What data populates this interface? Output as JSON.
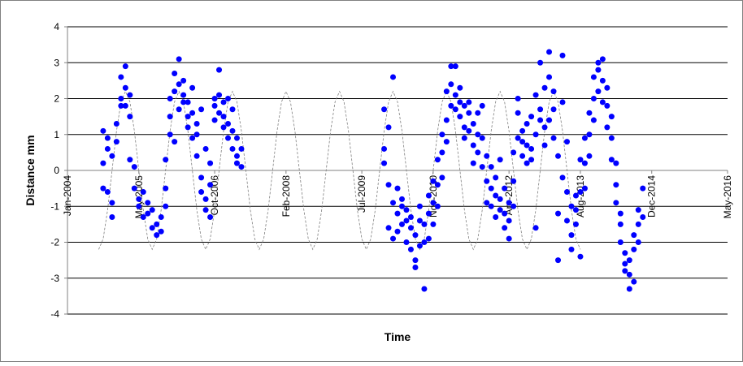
{
  "chart_data": {
    "type": "scatter",
    "x_label": "Time",
    "y_label": "Distance mm",
    "xlim": [
      "2004-01",
      "2016-05"
    ],
    "xticks": [
      {
        "value": "2004-01",
        "label": "Jan-2004"
      },
      {
        "value": "2005-05",
        "label": "May-2005"
      },
      {
        "value": "2006-10",
        "label": "Oct-2006"
      },
      {
        "value": "2008-02",
        "label": "Feb-2008"
      },
      {
        "value": "2009-07",
        "label": "Jul-2009"
      },
      {
        "value": "2010-11",
        "label": "Nov-2010"
      },
      {
        "value": "2012-04",
        "label": "Apr-2012"
      },
      {
        "value": "2013-08",
        "label": "Aug-2013"
      },
      {
        "value": "2014-12",
        "label": "Dec-2014"
      },
      {
        "value": "2016-05",
        "label": "May-2016"
      }
    ],
    "ylim": [
      -4,
      4
    ],
    "yticks": [
      -4,
      -3,
      -2,
      -1,
      0,
      1,
      2,
      3,
      4
    ],
    "grid": true,
    "series": [
      {
        "style": "markers",
        "color": "#0000ff",
        "x": [
          "2004-09",
          "2004-09",
          "2004-09",
          "2004-10",
          "2004-10",
          "2004-10",
          "2004-11",
          "2004-11",
          "2004-11",
          "2004-12",
          "2004-12",
          "2005-01",
          "2005-01",
          "2005-01",
          "2005-02",
          "2005-02",
          "2005-02",
          "2005-03",
          "2005-03",
          "2005-03",
          "2005-04",
          "2005-04",
          "2005-05",
          "2005-05",
          "2005-06",
          "2005-06",
          "2005-07",
          "2005-07",
          "2005-08",
          "2005-08",
          "2005-09",
          "2005-09",
          "2005-10",
          "2005-10",
          "2005-11",
          "2005-11",
          "2005-11",
          "2005-12",
          "2005-12",
          "2005-12",
          "2006-01",
          "2006-01",
          "2006-01",
          "2006-02",
          "2006-02",
          "2006-02",
          "2006-03",
          "2006-03",
          "2006-03",
          "2006-04",
          "2006-04",
          "2006-04",
          "2006-05",
          "2006-05",
          "2006-05",
          "2006-06",
          "2006-06",
          "2006-06",
          "2006-07",
          "2006-07",
          "2006-07",
          "2006-08",
          "2006-08",
          "2006-08",
          "2006-09",
          "2006-09",
          "2006-09",
          "2006-10",
          "2006-10",
          "2006-10",
          "2006-11",
          "2006-11",
          "2006-11",
          "2006-12",
          "2006-12",
          "2006-12",
          "2007-01",
          "2007-01",
          "2007-01",
          "2007-02",
          "2007-02",
          "2007-02",
          "2007-03",
          "2007-03",
          "2007-03",
          "2007-04",
          "2007-04",
          "2009-12",
          "2009-12",
          "2009-12",
          "2010-01",
          "2010-01",
          "2010-01",
          "2010-02",
          "2010-02",
          "2010-02",
          "2010-03",
          "2010-03",
          "2010-03",
          "2010-04",
          "2010-04",
          "2010-04",
          "2010-05",
          "2010-05",
          "2010-05",
          "2010-06",
          "2010-06",
          "2010-06",
          "2010-07",
          "2010-07",
          "2010-07",
          "2010-08",
          "2010-08",
          "2010-08",
          "2010-09",
          "2010-09",
          "2010-09",
          "2010-10",
          "2010-10",
          "2010-10",
          "2010-11",
          "2010-11",
          "2010-11",
          "2010-12",
          "2010-12",
          "2010-12",
          "2011-01",
          "2011-01",
          "2011-01",
          "2011-02",
          "2011-02",
          "2011-02",
          "2011-03",
          "2011-03",
          "2011-03",
          "2011-04",
          "2011-04",
          "2011-04",
          "2011-05",
          "2011-05",
          "2011-05",
          "2011-06",
          "2011-06",
          "2011-06",
          "2011-07",
          "2011-07",
          "2011-07",
          "2011-08",
          "2011-08",
          "2011-08",
          "2011-09",
          "2011-09",
          "2011-09",
          "2011-10",
          "2011-10",
          "2011-10",
          "2011-11",
          "2011-11",
          "2011-11",
          "2011-12",
          "2011-12",
          "2011-12",
          "2012-01",
          "2012-01",
          "2012-01",
          "2012-02",
          "2012-02",
          "2012-02",
          "2012-03",
          "2012-03",
          "2012-03",
          "2012-04",
          "2012-04",
          "2012-04",
          "2012-05",
          "2012-05",
          "2012-05",
          "2012-06",
          "2012-06",
          "2012-06",
          "2012-07",
          "2012-07",
          "2012-07",
          "2012-08",
          "2012-08",
          "2012-08",
          "2012-09",
          "2012-09",
          "2012-09",
          "2012-10",
          "2012-10",
          "2012-10",
          "2012-11",
          "2012-11",
          "2012-11",
          "2012-12",
          "2012-12",
          "2012-12",
          "2013-01",
          "2013-01",
          "2013-01",
          "2013-02",
          "2013-02",
          "2013-02",
          "2013-03",
          "2013-03",
          "2013-03",
          "2013-04",
          "2013-04",
          "2013-04",
          "2013-05",
          "2013-05",
          "2013-05",
          "2013-06",
          "2013-06",
          "2013-06",
          "2013-07",
          "2013-07",
          "2013-07",
          "2013-08",
          "2013-08",
          "2013-08",
          "2013-09",
          "2013-09",
          "2013-09",
          "2013-10",
          "2013-10",
          "2013-10",
          "2013-11",
          "2013-11",
          "2013-11",
          "2013-12",
          "2013-12",
          "2013-12",
          "2014-01",
          "2014-01",
          "2014-01",
          "2014-02",
          "2014-02",
          "2014-02",
          "2014-03",
          "2014-03",
          "2014-03",
          "2014-04",
          "2014-04",
          "2014-04",
          "2014-05",
          "2014-05",
          "2014-05",
          "2014-06",
          "2014-06",
          "2014-06",
          "2014-07",
          "2014-07",
          "2014-07",
          "2014-08",
          "2014-08",
          "2014-08",
          "2014-09",
          "2014-09",
          "2014-09",
          "2014-10",
          "2014-10"
        ],
        "values": [
          1.1,
          0.2,
          -0.5,
          0.6,
          -0.6,
          0.9,
          -1.3,
          -0.9,
          0.4,
          1.3,
          0.8,
          2.0,
          1.8,
          2.6,
          2.3,
          1.8,
          2.9,
          2.1,
          1.5,
          0.3,
          0.1,
          -0.5,
          -0.8,
          -1.0,
          -0.6,
          -1.3,
          -1.2,
          -0.9,
          -1.6,
          -1.1,
          -1.5,
          -1.8,
          -1.7,
          -1.3,
          -0.5,
          0.3,
          -1.0,
          1.0,
          1.5,
          2.0,
          0.8,
          2.2,
          2.7,
          1.7,
          3.1,
          2.4,
          1.9,
          2.1,
          2.5,
          1.5,
          1.9,
          1.2,
          2.3,
          1.6,
          0.9,
          1.3,
          1.0,
          0.4,
          1.7,
          -0.2,
          -0.6,
          0.6,
          -1.1,
          -0.8,
          -1.3,
          -0.4,
          0.2,
          1.8,
          2.0,
          1.4,
          2.8,
          2.1,
          1.6,
          1.2,
          1.9,
          1.5,
          2.0,
          1.3,
          0.9,
          1.7,
          0.6,
          1.1,
          0.2,
          0.9,
          0.4,
          0.1,
          0.6,
          1.7,
          0.6,
          0.2,
          -0.4,
          1.2,
          -1.6,
          -0.9,
          2.6,
          -1.9,
          -1.2,
          -0.5,
          -1.7,
          -1.5,
          -0.8,
          -1.0,
          -2.0,
          -1.4,
          -1.1,
          -1.6,
          -2.2,
          -1.3,
          -2.5,
          -1.8,
          -2.7,
          -1.4,
          -2.1,
          -1.0,
          -3.3,
          -2.0,
          -1.5,
          -1.2,
          -0.7,
          -1.9,
          -0.9,
          -0.3,
          -1.5,
          -0.4,
          0.3,
          -1.0,
          0.5,
          1.0,
          -0.2,
          1.4,
          2.2,
          0.8,
          1.8,
          2.4,
          2.9,
          2.1,
          2.9,
          1.7,
          1.9,
          1.5,
          2.3,
          1.2,
          1.8,
          0.9,
          1.6,
          1.9,
          1.1,
          0.7,
          1.3,
          0.2,
          1.6,
          1.0,
          0.5,
          1.8,
          0.9,
          0.1,
          -0.3,
          0.4,
          -0.9,
          -1.0,
          -0.5,
          0.1,
          -1.3,
          -0.7,
          -0.2,
          -0.8,
          -1.1,
          0.3,
          -1.6,
          -1.2,
          -0.5,
          -1.9,
          -0.9,
          -1.4,
          -0.3,
          -1.0,
          0.5,
          0.9,
          1.6,
          2.0,
          1.1,
          0.4,
          0.8,
          0.7,
          0.2,
          1.3,
          1.5,
          0.6,
          0.3,
          1.0,
          -1.6,
          2.1,
          1.7,
          3.0,
          1.4,
          0.7,
          2.3,
          1.2,
          3.3,
          2.6,
          1.4,
          1.7,
          2.2,
          0.9,
          0.4,
          -2.5,
          -1.2,
          1.9,
          3.2,
          -0.2,
          0.8,
          -0.6,
          -1.4,
          -1.8,
          -1.0,
          -2.2,
          -1.5,
          -0.7,
          -1.1,
          -0.6,
          -2.4,
          0.3,
          0.2,
          -0.5,
          0.9,
          1.0,
          0.4,
          1.6,
          2.0,
          1.4,
          2.6,
          2.8,
          2.2,
          3.0,
          2.5,
          3.1,
          1.9,
          1.8,
          1.2,
          2.3,
          0.9,
          0.3,
          1.5,
          0.2,
          -0.4,
          -0.9,
          -1.5,
          -2.0,
          -1.2,
          -2.6,
          -2.3,
          -2.8,
          -3.3,
          -2.9,
          -2.5,
          -3.1,
          -1.8,
          -2.2,
          -1.5,
          -1.1,
          -2.0,
          -0.5,
          -1.3
        ]
      },
      {
        "style": "dashed",
        "color": "#808080",
        "x": [
          "2004-08",
          "2004-09",
          "2004-10",
          "2004-11",
          "2004-12",
          "2005-01",
          "2005-02",
          "2005-03",
          "2005-04",
          "2005-05",
          "2005-06",
          "2005-07",
          "2005-08",
          "2005-09",
          "2005-10",
          "2005-11",
          "2005-12",
          "2006-01",
          "2006-02",
          "2006-03",
          "2006-04",
          "2006-05",
          "2006-06",
          "2006-07",
          "2006-08",
          "2006-09",
          "2006-10",
          "2006-11",
          "2006-12",
          "2007-01",
          "2007-02",
          "2007-03",
          "2007-04",
          "2007-05",
          "2007-06",
          "2007-07",
          "2007-08",
          "2007-09",
          "2007-10",
          "2007-11",
          "2007-12",
          "2008-01",
          "2008-02",
          "2008-03",
          "2008-04",
          "2008-05",
          "2008-06",
          "2008-07",
          "2008-08",
          "2008-09",
          "2008-10",
          "2008-11",
          "2008-12",
          "2009-01",
          "2009-02",
          "2009-03",
          "2009-04",
          "2009-05",
          "2009-06",
          "2009-07",
          "2009-08",
          "2009-09",
          "2009-10",
          "2009-11",
          "2009-12",
          "2010-01",
          "2010-02",
          "2010-03",
          "2010-04",
          "2010-05",
          "2010-06",
          "2010-07",
          "2010-08",
          "2010-09",
          "2010-10",
          "2010-11",
          "2010-12",
          "2011-01",
          "2011-02",
          "2011-03",
          "2011-04",
          "2011-05",
          "2011-06",
          "2011-07",
          "2011-08",
          "2011-09",
          "2011-10",
          "2011-11",
          "2011-12",
          "2012-01",
          "2012-02",
          "2012-03",
          "2012-04",
          "2012-05",
          "2012-06",
          "2012-07",
          "2012-08",
          "2012-09",
          "2012-10",
          "2012-11",
          "2012-12",
          "2013-01",
          "2013-02",
          "2013-03",
          "2013-04",
          "2013-05",
          "2013-06",
          "2013-07",
          "2013-08"
        ],
        "values": [
          -2.2,
          -1.91,
          -1.1,
          0,
          1.1,
          1.91,
          2.2,
          1.91,
          1.1,
          0,
          -1.1,
          -1.91,
          -2.2,
          -1.91,
          -1.1,
          0,
          1.1,
          1.91,
          2.2,
          1.91,
          1.1,
          0,
          -1.1,
          -1.91,
          -2.2,
          -1.91,
          -1.1,
          0,
          1.1,
          1.91,
          2.2,
          1.91,
          1.1,
          0,
          -1.1,
          -1.91,
          -2.2,
          -1.91,
          -1.1,
          0,
          1.1,
          1.91,
          2.2,
          1.91,
          1.1,
          0,
          -1.1,
          -1.91,
          -2.2,
          -1.91,
          -1.1,
          0,
          1.1,
          1.91,
          2.2,
          1.91,
          1.1,
          0,
          -1.1,
          -1.91,
          -2.2,
          -1.91,
          -1.1,
          0,
          1.1,
          1.91,
          2.2,
          1.91,
          1.1,
          0,
          -1.1,
          -1.91,
          -2.2,
          -1.91,
          -1.1,
          0,
          1.1,
          1.91,
          2.2,
          1.91,
          1.1,
          0,
          -1.1,
          -1.91,
          -2.2,
          -1.91,
          -1.1,
          0,
          1.1,
          1.91,
          2.2,
          1.91,
          1.1,
          0,
          -1.1,
          -1.91,
          -2.2,
          -1.91,
          -1.1,
          0,
          1.1,
          1.91,
          2.2,
          1.91,
          1.1,
          0,
          -1.1,
          -1.91,
          -2.2
        ]
      }
    ]
  }
}
